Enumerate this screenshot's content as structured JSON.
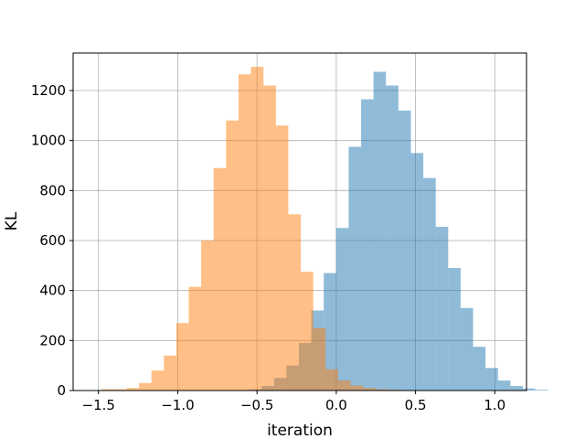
{
  "chart_data": {
    "type": "bar",
    "title": "",
    "xlabel": "iteration",
    "ylabel": "KL",
    "xlim": [
      -1.66,
      1.2
    ],
    "ylim": [
      0,
      1350
    ],
    "grid": true,
    "legend": "none",
    "xticks": [
      -1.5,
      -1.0,
      -0.5,
      0.0,
      0.5,
      1.0
    ],
    "xtick_labels": [
      "−1.5",
      "−1.0",
      "−0.5",
      "0.0",
      "0.5",
      "1.0"
    ],
    "yticks": [
      0,
      200,
      400,
      600,
      800,
      1000,
      1200
    ],
    "ytick_labels": [
      "0",
      "200",
      "400",
      "600",
      "800",
      "1000",
      "1200"
    ],
    "series": [
      {
        "color": "#1f77b4",
        "opacity": 0.5,
        "bin_start": -0.55,
        "bin_width": 0.0785,
        "values": [
          5,
          18,
          50,
          100,
          190,
          320,
          470,
          650,
          975,
          1165,
          1275,
          1220,
          1120,
          950,
          850,
          655,
          490,
          330,
          175,
          90,
          40,
          18,
          8,
          3
        ]
      },
      {
        "color": "#ff7f0e",
        "opacity": 0.5,
        "bin_start": -1.48,
        "bin_width": 0.0785,
        "values": [
          5,
          5,
          10,
          30,
          80,
          140,
          270,
          415,
          600,
          890,
          1080,
          1265,
          1295,
          1220,
          1060,
          705,
          475,
          250,
          85,
          40,
          20,
          10,
          5,
          3,
          2
        ]
      }
    ]
  }
}
